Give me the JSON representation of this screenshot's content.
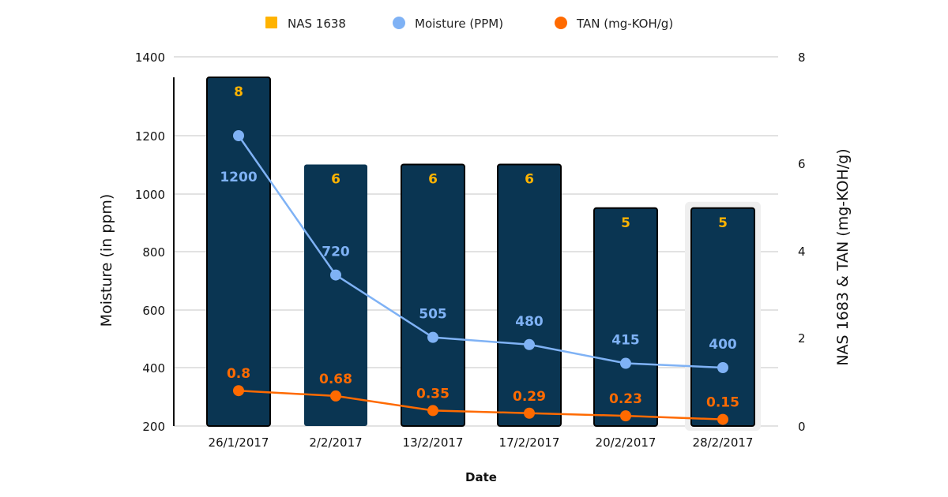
{
  "chart_data": {
    "type": "bar",
    "title": "",
    "xlabel": "Date",
    "ylabel": "Moisture (in ppm)",
    "y2label": "NAS 1683 & TAN (mg-KOH/g)",
    "categories": [
      "26/1/2017",
      "2/2/2017",
      "13/2/2017",
      "17/2/2017",
      "20/2/2017",
      "28/2/2017"
    ],
    "ylim": [
      200,
      1400
    ],
    "y_ticks": [
      1400,
      1200,
      1000,
      800,
      600,
      400,
      200
    ],
    "y2lim": [
      0,
      8
    ],
    "y2_ticks": [
      8,
      6,
      4,
      2,
      0
    ],
    "grid": true,
    "legend_position": "top",
    "highlighted_category": "28/2/2017",
    "series": [
      {
        "name": "NAS 1638",
        "type": "bar",
        "axis": "right",
        "color": "#FFB300",
        "bar_color": "#0A3552",
        "values": [
          8,
          6,
          6,
          6,
          5,
          5
        ],
        "labels": [
          "8",
          "6",
          "6",
          "6",
          "5",
          "5"
        ]
      },
      {
        "name": "Moisture (PPM)",
        "type": "line",
        "axis": "left",
        "color": "#7FB2F5",
        "values": [
          1200,
          720,
          505,
          480,
          415,
          400
        ],
        "labels": [
          "1200",
          "720",
          "505",
          "480",
          "415",
          "400"
        ]
      },
      {
        "name": "TAN (mg-KOH/g)",
        "type": "line",
        "axis": "right",
        "color": "#FF6A00",
        "values": [
          0.8,
          0.68,
          0.35,
          0.29,
          0.23,
          0.15
        ],
        "labels": [
          "0.8",
          "0.68",
          "0.35",
          "0.29",
          "0.23",
          "0.15"
        ]
      }
    ]
  }
}
